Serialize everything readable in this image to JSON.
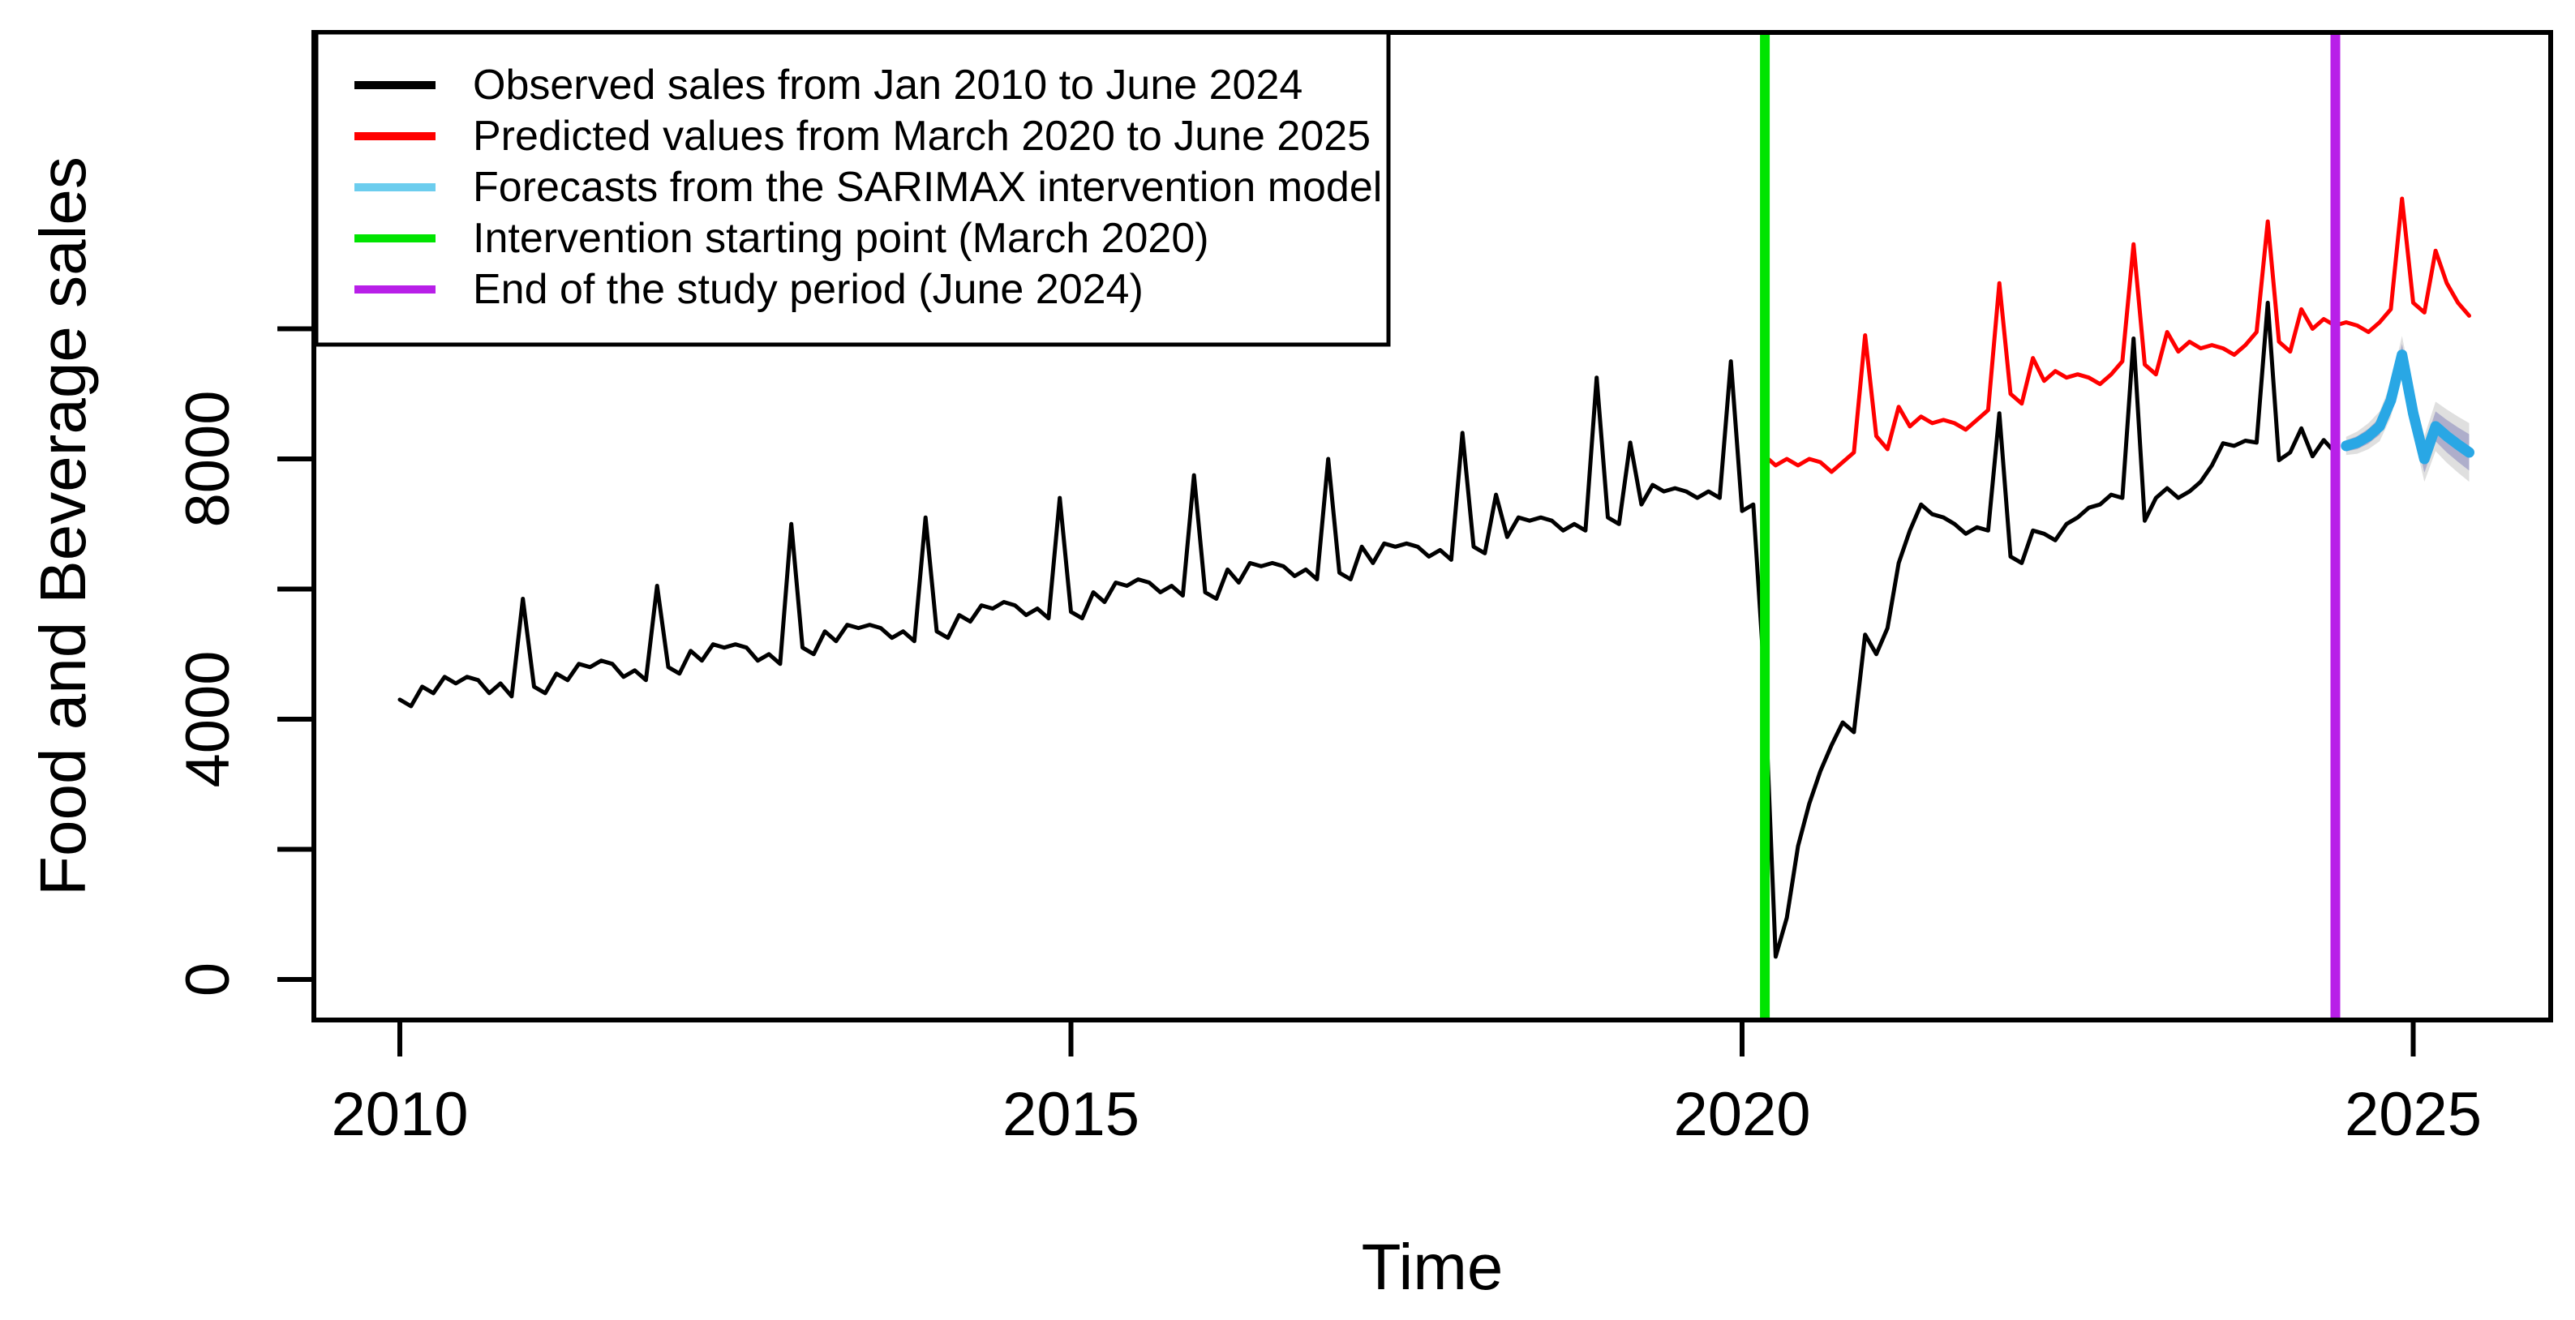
{
  "chart_data": {
    "type": "line",
    "title": "",
    "xlabel": "Time",
    "ylabel": "Food and Beverage sales",
    "grid": false,
    "x_axis": {
      "ticks": [
        2010,
        2015,
        2020,
        2025
      ],
      "range_years": [
        2009.45,
        2026.0
      ]
    },
    "y_axis": {
      "ticks": [
        0,
        2000,
        4000,
        6000,
        8000,
        10000
      ],
      "labeled_ticks": [
        0,
        4000,
        8000
      ],
      "range": [
        -650,
        14550
      ]
    },
    "legend": {
      "position": "topleft",
      "entries": [
        {
          "label": "Observed sales from Jan 2010 to June 2024",
          "color": "#000000"
        },
        {
          "label": "Predicted values from March 2020 to June 2025",
          "color": "#FF0000"
        },
        {
          "label": "Forecasts from the SARIMAX intervention model",
          "color": "#6CCDEE"
        },
        {
          "label": "Intervention starting point (March 2020)",
          "color": "#00E400"
        },
        {
          "label": "End of the study period (June 2024)",
          "color": "#B81FE8"
        }
      ]
    },
    "series": [
      {
        "name": "Observed sales from Jan 2010 to June 2024",
        "color": "#000000",
        "line_width": 5,
        "start_year": 2010,
        "start_month": 1,
        "frequency": 12,
        "values": [
          4300,
          4200,
          4500,
          4400,
          4650,
          4550,
          4650,
          4600,
          4400,
          4550,
          4350,
          5850,
          4500,
          4400,
          4700,
          4600,
          4850,
          4800,
          4900,
          4850,
          4650,
          4750,
          4600,
          6050,
          4800,
          4700,
          5050,
          4900,
          5150,
          5100,
          5150,
          5100,
          4900,
          5000,
          4850,
          7000,
          5100,
          5000,
          5350,
          5200,
          5450,
          5400,
          5450,
          5400,
          5250,
          5350,
          5200,
          7100,
          5350,
          5250,
          5600,
          5500,
          5750,
          5700,
          5800,
          5750,
          5600,
          5700,
          5550,
          7400,
          5650,
          5550,
          5950,
          5800,
          6100,
          6050,
          6150,
          6100,
          5950,
          6050,
          5900,
          7750,
          5950,
          5850,
          6300,
          6100,
          6400,
          6350,
          6400,
          6350,
          6200,
          6300,
          6150,
          8000,
          6250,
          6150,
          6650,
          6400,
          6700,
          6650,
          6700,
          6650,
          6500,
          6600,
          6450,
          8400,
          6650,
          6550,
          7450,
          6800,
          7100,
          7050,
          7100,
          7050,
          6900,
          7000,
          6900,
          9250,
          7100,
          7000,
          8250,
          7300,
          7600,
          7500,
          7550,
          7500,
          7400,
          7500,
          7400,
          9500,
          7200,
          7300,
          4600,
          350,
          950,
          2050,
          2700,
          3200,
          3600,
          3950,
          3800,
          5300,
          5000,
          5400,
          6400,
          6900,
          7300,
          7150,
          7100,
          7000,
          6850,
          6950,
          6900,
          8700,
          6500,
          6400,
          6900,
          6850,
          6750,
          7000,
          7100,
          7250,
          7300,
          7450,
          7400,
          9850,
          7050,
          7400,
          7550,
          7400,
          7500,
          7650,
          7900,
          8240,
          8200,
          8280,
          8250,
          10400,
          7980,
          8100,
          8470,
          8040,
          8290,
          8100
        ]
      },
      {
        "name": "Predicted values from March 2020 to June 2025",
        "color": "#FF0000",
        "line_width": 5,
        "start_year": 2020,
        "start_month": 3,
        "frequency": 12,
        "values": [
          8050,
          7900,
          8000,
          7900,
          8000,
          7950,
          7800,
          7950,
          8100,
          9900,
          8350,
          8150,
          8800,
          8500,
          8650,
          8550,
          8600,
          8550,
          8450,
          8600,
          8750,
          10700,
          9000,
          8850,
          9550,
          9200,
          9350,
          9250,
          9300,
          9250,
          9150,
          9300,
          9500,
          11300,
          9450,
          9300,
          9950,
          9650,
          9800,
          9700,
          9750,
          9700,
          9600,
          9750,
          9950,
          11650,
          9800,
          9650,
          10300,
          10000,
          10150,
          10050,
          10100,
          10050,
          9950,
          10100,
          10300,
          12000,
          10400,
          10250,
          11200,
          10700,
          10400,
          10200
        ]
      },
      {
        "name": "Forecasts from the SARIMAX intervention model",
        "color": "#29A7E5",
        "line_width": 13,
        "start_year": 2024,
        "start_month": 7,
        "frequency": 12,
        "values": [
          8200,
          8250,
          8350,
          8500,
          8900,
          9600,
          8700,
          8000,
          8500,
          8350,
          8220,
          8100
        ],
        "ci80_lower": [
          8115,
          8150,
          8235,
          8370,
          8750,
          9430,
          8510,
          7790,
          8270,
          8100,
          7955,
          7820
        ],
        "ci80_upper": [
          8285,
          8350,
          8465,
          8630,
          9050,
          9770,
          8890,
          8210,
          8730,
          8600,
          8485,
          8380
        ],
        "ci95_lower": [
          8060,
          8080,
          8150,
          8270,
          8640,
          9310,
          8380,
          7650,
          8120,
          7940,
          7790,
          7650
        ],
        "ci95_upper": [
          8340,
          8420,
          8550,
          8730,
          9160,
          9890,
          9020,
          8350,
          8880,
          8760,
          8650,
          8550
        ],
        "ci80_color": "#A6A6C8",
        "ci95_color": "#D9D9D9"
      }
    ],
    "vlines": [
      {
        "year_value": 2020.17,
        "label": "Intervention starting point (March 2020)",
        "color": "#00E400",
        "line_width": 12
      },
      {
        "year_value": 2024.42,
        "label": "End of the study period (June 2024)",
        "color": "#B81FE8",
        "line_width": 12
      }
    ]
  }
}
